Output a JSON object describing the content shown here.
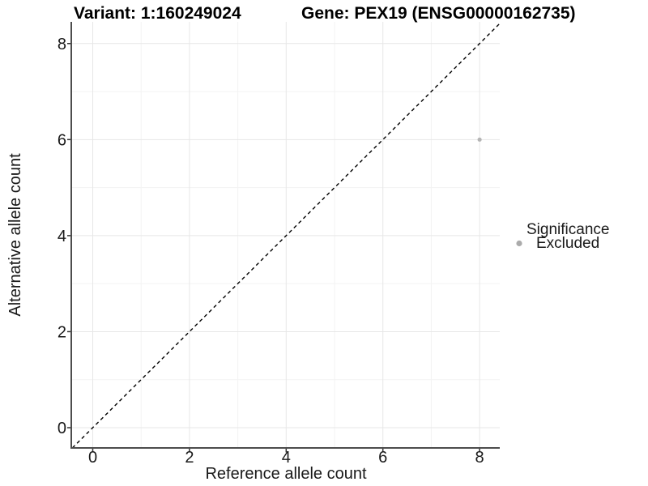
{
  "chart_data": {
    "type": "scatter",
    "titles": {
      "left": "Variant: 1:160249024",
      "right": "Gene: PEX19 (ENSG00000162735)"
    },
    "xlabel": "Reference allele count",
    "ylabel": "Alternative allele count",
    "xlim": [
      -0.45,
      8.45
    ],
    "ylim": [
      -0.45,
      8.45
    ],
    "xticks": [
      0,
      2,
      4,
      6,
      8
    ],
    "yticks": [
      0,
      2,
      4,
      6,
      8
    ],
    "minor_ticks": [
      1,
      3,
      5,
      7
    ],
    "grid": "major and minor gridlines on white panel",
    "identity_line": {
      "equation": "y = x",
      "style": "dashed",
      "color": "#000000"
    },
    "points": [
      {
        "x": 8,
        "y": 6,
        "series": "Excluded"
      }
    ],
    "legend": {
      "title": "Significance",
      "position": "right",
      "items": [
        {
          "label": "Excluded",
          "color": "#ababab"
        }
      ]
    },
    "colors": {
      "point": "#b5b5b5",
      "grid_major": "#e7e7e7",
      "grid_minor": "#f3f3f3",
      "axis_line": "#4d4d4d",
      "tick_mark": "#333333",
      "text": "#1a1a1a",
      "background": "#ffffff"
    }
  }
}
